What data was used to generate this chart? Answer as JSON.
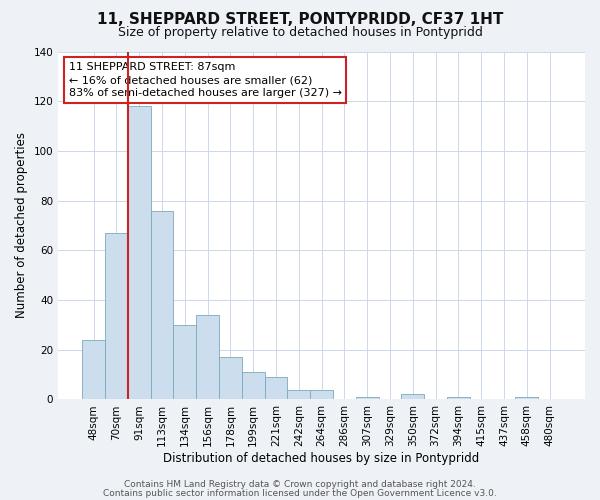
{
  "title": "11, SHEPPARD STREET, PONTYPRIDD, CF37 1HT",
  "subtitle": "Size of property relative to detached houses in Pontypridd",
  "xlabel": "Distribution of detached houses by size in Pontypridd",
  "ylabel": "Number of detached properties",
  "footer_line1": "Contains HM Land Registry data © Crown copyright and database right 2024.",
  "footer_line2": "Contains public sector information licensed under the Open Government Licence v3.0.",
  "bin_labels": [
    "48sqm",
    "70sqm",
    "91sqm",
    "113sqm",
    "134sqm",
    "156sqm",
    "178sqm",
    "199sqm",
    "221sqm",
    "242sqm",
    "264sqm",
    "286sqm",
    "307sqm",
    "329sqm",
    "350sqm",
    "372sqm",
    "394sqm",
    "415sqm",
    "437sqm",
    "458sqm",
    "480sqm"
  ],
  "bar_heights": [
    24,
    67,
    118,
    76,
    30,
    34,
    17,
    11,
    9,
    4,
    4,
    0,
    1,
    0,
    2,
    0,
    1,
    0,
    0,
    1,
    0
  ],
  "bar_color": "#ccdded",
  "bar_edge_color": "#7aaabb",
  "vline_color": "#cc2222",
  "ylim": [
    0,
    140
  ],
  "yticks": [
    0,
    20,
    40,
    60,
    80,
    100,
    120,
    140
  ],
  "annotation_title": "11 SHEPPARD STREET: 87sqm",
  "annotation_line1": "← 16% of detached houses are smaller (62)",
  "annotation_line2": "83% of semi-detached houses are larger (327) →",
  "annotation_box_color": "#ffffff",
  "annotation_box_edge": "#cc2222",
  "bg_color": "#eef2f7",
  "plot_bg_color": "#ffffff",
  "grid_color": "#ccd8e8",
  "title_fontsize": 11,
  "subtitle_fontsize": 9,
  "ylabel_fontsize": 8.5,
  "xlabel_fontsize": 8.5,
  "tick_fontsize": 7.5,
  "annot_fontsize": 8,
  "footer_fontsize": 6.5
}
